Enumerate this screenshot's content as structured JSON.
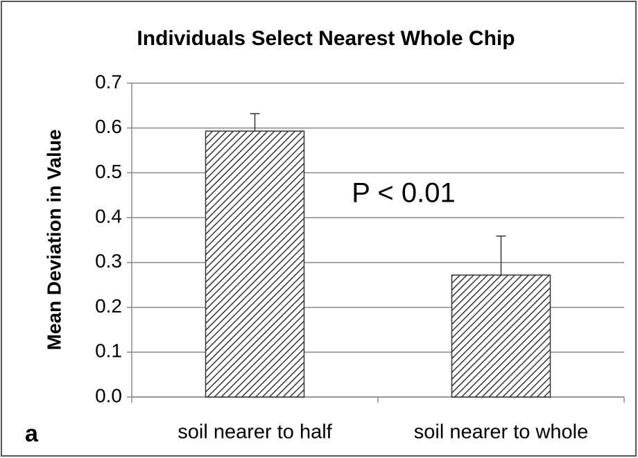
{
  "chart_data": {
    "type": "bar",
    "title": "Individuals Select Nearest Whole Chip",
    "y_label": "Mean Deviation in Value",
    "panel_label": "a",
    "annotation": "P < 0.01",
    "categories": [
      "soil nearer to half",
      "soil nearer to whole"
    ],
    "values": [
      0.593,
      0.272
    ],
    "errors": [
      0.039,
      0.087
    ],
    "color": "#333333",
    "ylim": [
      0,
      0.7
    ],
    "yticks": [
      {
        "value": 0,
        "label": "0.0"
      },
      0.1,
      0.2,
      0.3,
      0.4,
      0.5,
      0.6,
      0.7
    ],
    "grid": true
  }
}
